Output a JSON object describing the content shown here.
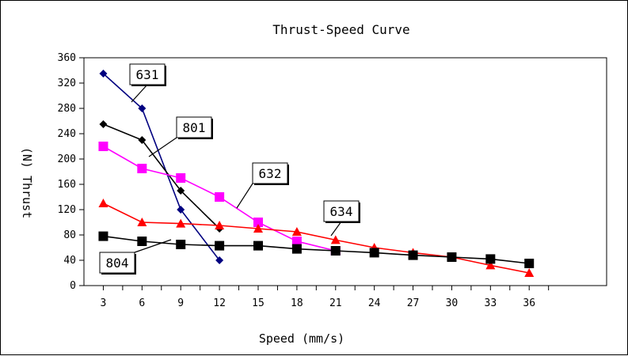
{
  "chart_data": {
    "type": "line",
    "title": "Thrust-Speed Curve",
    "xlabel": "Speed (mm/s)",
    "ylabel": "(N) Thrust",
    "xlim": [
      1.5,
      42
    ],
    "ylim": [
      0,
      360
    ],
    "x_ticks": [
      3,
      6,
      9,
      12,
      15,
      18,
      21,
      24,
      27,
      30,
      33,
      36
    ],
    "y_ticks": [
      0,
      40,
      80,
      120,
      160,
      200,
      240,
      280,
      320,
      360
    ],
    "grid": false,
    "legend": "callouts",
    "series": [
      {
        "name": "631",
        "color": "#000080",
        "marker": "diamond",
        "points": [
          [
            3,
            335
          ],
          [
            6,
            280
          ],
          [
            9,
            120
          ],
          [
            12,
            40
          ]
        ]
      },
      {
        "name": "801",
        "color": "#000000",
        "marker": "diamond",
        "points": [
          [
            3,
            255
          ],
          [
            6,
            230
          ],
          [
            9,
            150
          ],
          [
            12,
            90
          ]
        ]
      },
      {
        "name": "632",
        "color": "#ff00ff",
        "marker": "square",
        "points": [
          [
            3,
            220
          ],
          [
            6,
            185
          ],
          [
            9,
            170
          ],
          [
            12,
            140
          ],
          [
            15,
            100
          ],
          [
            18,
            70
          ],
          [
            21,
            55
          ]
        ]
      },
      {
        "name": "634",
        "color": "#ff0000",
        "marker": "triangle",
        "points": [
          [
            3,
            130
          ],
          [
            6,
            100
          ],
          [
            9,
            98
          ],
          [
            12,
            95
          ],
          [
            15,
            90
          ],
          [
            18,
            85
          ],
          [
            21,
            72
          ],
          [
            24,
            60
          ],
          [
            27,
            52
          ],
          [
            30,
            45
          ],
          [
            33,
            32
          ],
          [
            36,
            20
          ]
        ]
      },
      {
        "name": "804",
        "color": "#000000",
        "marker": "square",
        "points": [
          [
            3,
            78
          ],
          [
            6,
            70
          ],
          [
            9,
            65
          ],
          [
            12,
            63
          ],
          [
            15,
            63
          ],
          [
            18,
            58
          ],
          [
            21,
            55
          ],
          [
            24,
            52
          ],
          [
            27,
            48
          ],
          [
            30,
            45
          ],
          [
            33,
            42
          ],
          [
            36,
            35
          ]
        ]
      }
    ],
    "callouts": [
      {
        "label": "631",
        "series": "631",
        "at": [
          6,
          290
        ]
      },
      {
        "label": "801",
        "series": "801",
        "at": [
          6,
          212
        ]
      },
      {
        "label": "632",
        "series": "632",
        "at": [
          13,
          122
        ]
      },
      {
        "label": "634",
        "series": "634",
        "at": [
          19,
          79
        ]
      },
      {
        "label": "804",
        "series": "804",
        "at": [
          7,
          72
        ]
      }
    ]
  }
}
